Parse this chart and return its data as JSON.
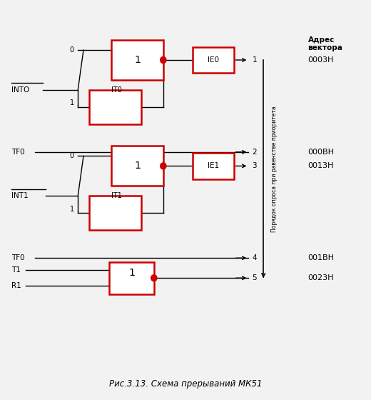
{
  "title": "Рис.3.13. Схема прерываний МК51",
  "bg_color": "#f2f2f2",
  "fig_width": 5.2,
  "fig_height": 5.6,
  "dpi": 100,
  "priority_label": "Порядок опроса при равенстве приоритета",
  "addr_header": "Адрес\nвектора",
  "addresses": [
    "0003Н",
    "000ВН",
    "0013Н",
    "001ВН",
    "0023Н"
  ]
}
